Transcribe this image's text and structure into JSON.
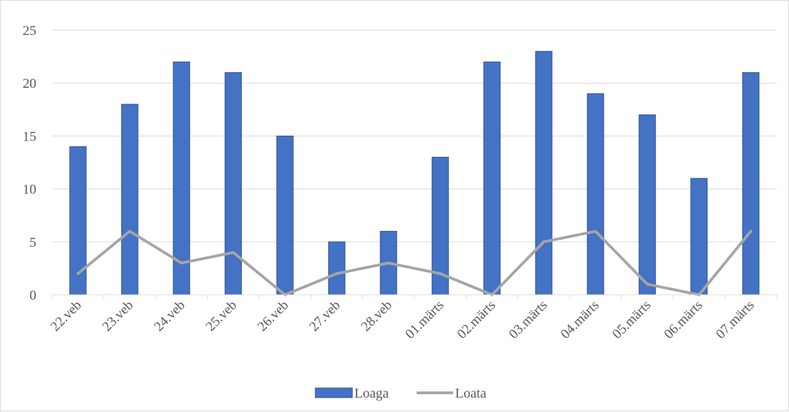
{
  "chart_data": {
    "type": "bar",
    "categories": [
      "22.veb",
      "23.veb",
      "24.veb",
      "25.veb",
      "26.veb",
      "27.veb",
      "28.veb",
      "01.märts",
      "02.märts",
      "03.märts",
      "04.märts",
      "05.märts",
      "06.märts",
      "07.märts"
    ],
    "series": [
      {
        "name": "Loaga",
        "type": "bar",
        "color": "#4472c4",
        "values": [
          14,
          18,
          22,
          21,
          15,
          5,
          6,
          13,
          22,
          23,
          19,
          17,
          11,
          21
        ]
      },
      {
        "name": "Loata",
        "type": "line",
        "color": "#a5a5a5",
        "values": [
          2,
          6,
          3,
          4,
          0,
          2,
          3,
          2,
          0,
          5,
          6,
          1,
          0,
          6
        ]
      }
    ],
    "yticks": [
      "0",
      "5",
      "10",
      "15",
      "20",
      "25"
    ],
    "ylim": [
      0,
      25
    ],
    "title": "",
    "xlabel": "",
    "ylabel": "",
    "grid": true,
    "legend_position": "bottom"
  }
}
